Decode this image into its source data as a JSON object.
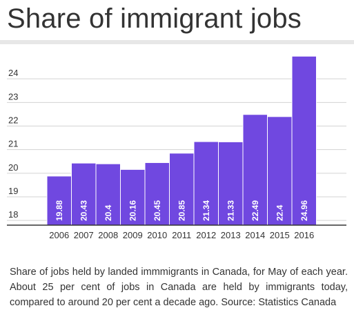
{
  "header": {
    "title": "Share of immigrant jobs"
  },
  "caption": {
    "text": "Share of jobs held by landed immmigrants in Canada, for May of each year. About 25 per cent of jobs in Canada are held by immigrants today, compared to around 20 per cent a decade ago. Source: Statistics Canada"
  },
  "chart_data": {
    "type": "bar",
    "categories": [
      "2006",
      "2007",
      "2008",
      "2009",
      "2010",
      "2011",
      "2012",
      "2013",
      "2014",
      "2015",
      "2016"
    ],
    "values": [
      19.88,
      20.43,
      20.4,
      20.16,
      20.45,
      20.85,
      21.34,
      21.33,
      22.49,
      22.4,
      24.96
    ],
    "value_labels": [
      "19.88",
      "20.43",
      "20.4",
      "20.16",
      "20.45",
      "20.85",
      "21.34",
      "21.33",
      "22.49",
      "22.4",
      "24.96"
    ],
    "title": "",
    "xlabel": "",
    "ylabel": "",
    "ylim": [
      17.8,
      25
    ],
    "yticks": [
      18,
      19,
      20,
      21,
      22,
      23,
      24
    ],
    "ytick_labels": [
      "18",
      "19",
      "20",
      "21",
      "22",
      "23",
      "24"
    ],
    "grid": true,
    "legend": "none",
    "colors": {
      "bar": "#7048e0",
      "bar_border": "#ffffff",
      "grid": "#d3d3d3",
      "axis": "#333333",
      "label_text": "#ffffff",
      "tick_text": "#333333"
    }
  }
}
